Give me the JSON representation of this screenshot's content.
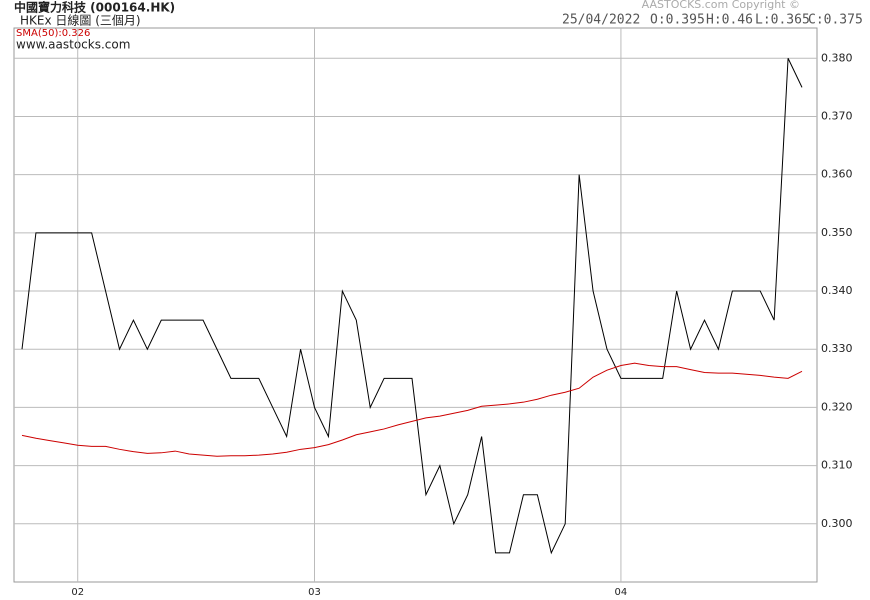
{
  "chart_data": {
    "type": "line",
    "title": "中國寶力科技 (000164.HK)",
    "subtitle": "HKEx 日線圖 (三個月)",
    "date": "25/04/2022",
    "ohlc": [
      "O:0.395",
      "H:0.46",
      "L:0.365",
      "C:0.375"
    ],
    "copyright": "AASTOCKS.com Copyright ©",
    "website": "www.aastocks.com",
    "categories": [
      null,
      null,
      null,
      null,
      "02",
      null,
      null,
      null,
      null,
      null,
      null,
      null,
      null,
      null,
      null,
      null,
      null,
      null,
      null,
      null,
      null,
      "03",
      null,
      null,
      null,
      null,
      null,
      null,
      null,
      null,
      null,
      null,
      null,
      null,
      null,
      null,
      null,
      null,
      null,
      null,
      null,
      null,
      null,
      "04",
      null,
      null,
      null,
      null,
      null,
      null,
      null,
      null,
      null,
      null,
      null,
      null,
      null
    ],
    "series": [
      {
        "color": "#000000",
        "values": [
          0.33,
          0.35,
          0.35,
          0.35,
          0.35,
          0.35,
          0.34,
          0.33,
          0.335,
          0.33,
          0.335,
          0.335,
          0.335,
          0.335,
          0.33,
          0.325,
          0.325,
          0.325,
          0.32,
          0.315,
          0.33,
          0.32,
          0.315,
          0.34,
          0.335,
          0.32,
          0.325,
          0.325,
          0.325,
          0.305,
          0.31,
          0.3,
          0.305,
          0.315,
          0.295,
          0.295,
          0.305,
          0.305,
          0.295,
          0.3,
          0.36,
          0.34,
          0.33,
          0.325,
          0.325,
          0.325,
          0.325,
          0.34,
          0.33,
          0.335,
          0.33,
          0.34,
          0.34,
          0.34,
          0.335,
          0.38,
          0.375
        ]
      },
      {
        "name": "SMA(50):0.326",
        "color": "#cc0000",
        "values": [
          0.3152,
          0.3147,
          0.3143,
          0.3139,
          0.3135,
          0.3133,
          0.3133,
          0.3128,
          0.3124,
          0.3121,
          0.3122,
          0.3125,
          0.312,
          0.3118,
          0.3116,
          0.3117,
          0.3117,
          0.3118,
          0.312,
          0.3123,
          0.3128,
          0.3131,
          0.3136,
          0.3144,
          0.3153,
          0.3158,
          0.3163,
          0.317,
          0.3176,
          0.3182,
          0.3185,
          0.319,
          0.3195,
          0.3202,
          0.3204,
          0.3206,
          0.3209,
          0.3214,
          0.3221,
          0.3226,
          0.3233,
          0.3252,
          0.3264,
          0.3272,
          0.3276,
          0.3272,
          0.327,
          0.327,
          0.3265,
          0.326,
          0.3259,
          0.3259,
          0.3257,
          0.3255,
          0.3252,
          0.325,
          0.3262
        ]
      }
    ],
    "ylim": [
      0.29,
      0.3852
    ],
    "yticks": [
      {
        "value": 0.3,
        "label": "0.300"
      },
      {
        "value": 0.31,
        "label": "0.310"
      },
      {
        "value": 0.32,
        "label": "0.320"
      },
      {
        "value": 0.33,
        "label": "0.330"
      },
      {
        "value": 0.34,
        "label": "0.340"
      },
      {
        "value": 0.35,
        "label": "0.350"
      },
      {
        "value": 0.36,
        "label": "0.360"
      },
      {
        "value": 0.37,
        "label": "0.370"
      },
      {
        "value": 0.38,
        "label": "0.380"
      }
    ],
    "grid": true
  }
}
